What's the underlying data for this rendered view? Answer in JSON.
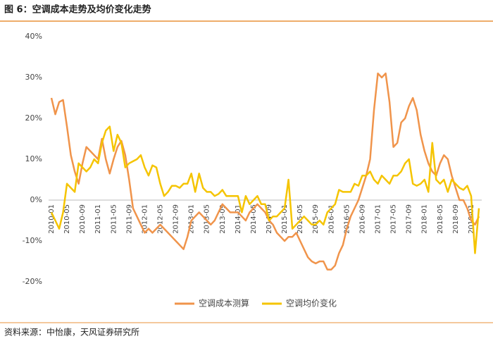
{
  "chart_data": {
    "type": "line",
    "title": "图 6：空调成本走势及均价变化走势",
    "source": "资料来源：中怡康，天风证券研究所",
    "categories": [
      "2010-01",
      null,
      null,
      null,
      "2010-05",
      null,
      null,
      null,
      "2010-09",
      null,
      null,
      null,
      "2011-01",
      null,
      null,
      null,
      "2011-05",
      null,
      null,
      null,
      "2011-09",
      null,
      null,
      null,
      "2012-01",
      null,
      null,
      null,
      "2012-05",
      null,
      null,
      null,
      "2012-09",
      null,
      null,
      null,
      "2013-01",
      null,
      null,
      null,
      "2013-05",
      null,
      null,
      null,
      "2013-09",
      null,
      null,
      null,
      "2014-01",
      null,
      null,
      null,
      "2014-05",
      null,
      null,
      null,
      "2014-09",
      null,
      null,
      null,
      "2015-01",
      null,
      null,
      null,
      "2015-05",
      null,
      null,
      null,
      "2015-09",
      null,
      null,
      null,
      "2016-01",
      null,
      null,
      null,
      "2016-05",
      null,
      null,
      null,
      "2016-09",
      null,
      null,
      null,
      "2017-01",
      null,
      null,
      null,
      "2017-05",
      null,
      null,
      null,
      "2017-09",
      null,
      null,
      null,
      "2018-01",
      null,
      null,
      null,
      "2018-05",
      null,
      null,
      null,
      "2018-09",
      null,
      null,
      null,
      "2019-01",
      null,
      null
    ],
    "series": [
      {
        "name": "空调成本测算",
        "color": "#f0944b",
        "values": [
          25,
          21,
          24,
          24.5,
          18,
          11,
          7,
          4,
          9,
          13,
          12,
          11,
          10,
          15,
          10,
          6.5,
          10,
          13,
          14.5,
          11,
          5,
          -2,
          -4,
          -6,
          -8,
          -7,
          -8,
          -7,
          -6,
          -7,
          -8,
          -9,
          -10,
          -11,
          -12,
          -9,
          -5,
          -4,
          -3,
          -4,
          -5,
          -6,
          -5,
          -3,
          -1,
          -2,
          -3,
          -3,
          -3,
          -4,
          -5,
          -3,
          -2,
          -1,
          -2,
          -3,
          -5,
          -6,
          -8,
          -9,
          -10,
          -9,
          -9,
          -8,
          -10,
          -12,
          -14,
          -15,
          -15.5,
          -15,
          -15,
          -17,
          -17,
          -16,
          -13,
          -11,
          -7,
          -4,
          -2,
          0,
          3,
          6,
          10,
          22,
          31,
          30,
          31,
          24,
          13,
          14,
          19,
          20,
          23,
          25,
          22,
          16,
          12,
          9,
          7,
          6,
          9,
          11,
          10,
          6,
          3,
          0,
          0,
          -2,
          -5,
          -6,
          -4
        ]
      },
      {
        "name": "空调均价变化",
        "color": "#f5c400",
        "values": [
          -3,
          -5,
          -7,
          -3,
          4,
          3,
          2,
          9,
          8,
          7,
          8,
          10,
          9,
          14,
          17,
          18,
          12,
          16,
          14,
          8,
          9,
          9.5,
          10,
          11,
          8,
          6,
          8.5,
          8,
          4,
          1,
          2,
          3.5,
          3.5,
          3,
          4,
          4,
          6.5,
          2,
          6.5,
          3,
          2,
          2,
          1,
          1.5,
          2.5,
          1,
          1,
          1,
          1,
          -3,
          1,
          -1,
          0,
          1,
          -1,
          -1,
          -5,
          -4,
          -4,
          -3,
          -2,
          5,
          -7,
          -6,
          -5,
          -4,
          -5,
          -6,
          -6,
          -5,
          -6,
          -3,
          -2,
          -1,
          2.5,
          2,
          2,
          2,
          4,
          3.5,
          6,
          6,
          7,
          5,
          4,
          6,
          5,
          4,
          6,
          6,
          7,
          9,
          10,
          4,
          3.5,
          4,
          5,
          2,
          14,
          5,
          4,
          5,
          2,
          5,
          4,
          3,
          2.5,
          3.5,
          1,
          -13,
          -2
        ]
      }
    ],
    "ylim": [
      -20,
      40
    ],
    "yticks": [
      {
        "value": -20,
        "label": "-20%"
      },
      {
        "value": -10,
        "label": "-10%"
      },
      {
        "value": 0,
        "label": "0%"
      },
      {
        "value": 10,
        "label": "10%"
      },
      {
        "value": 20,
        "label": "20%"
      },
      {
        "value": 30,
        "label": "30%"
      },
      {
        "value": 40,
        "label": "40%"
      }
    ],
    "grid": false,
    "legend": "bottom"
  }
}
